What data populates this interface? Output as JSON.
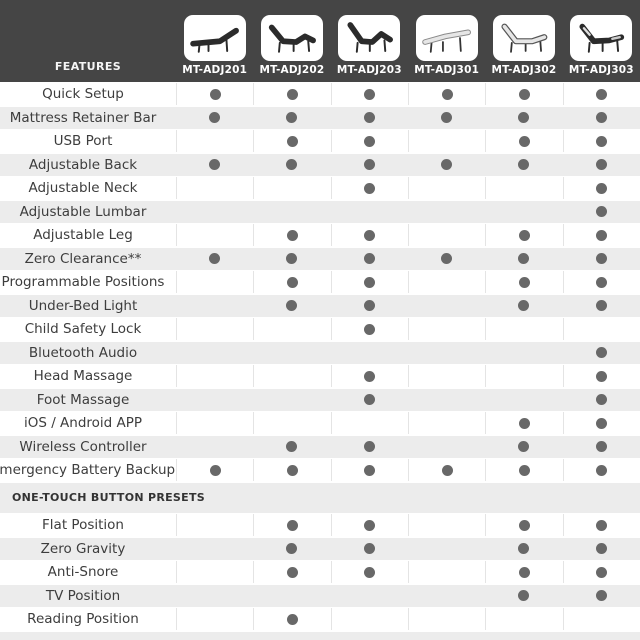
{
  "header": {
    "features_label": "FEATURES",
    "products": [
      {
        "model": "MT-ADJ201",
        "icon": "bed-flat-dark-icon"
      },
      {
        "model": "MT-ADJ202",
        "icon": "bed-adjusted-dark-icon"
      },
      {
        "model": "MT-ADJ203",
        "icon": "bed-adjusted-steep-dark-icon"
      },
      {
        "model": "MT-ADJ301",
        "icon": "bed-flat-light-frame-icon"
      },
      {
        "model": "MT-ADJ302",
        "icon": "bed-adjusted-light-icon"
      },
      {
        "model": "MT-ADJ303",
        "icon": "bed-adjusted-dark-light-icon"
      }
    ]
  },
  "chart_data": {
    "type": "table",
    "columns": [
      "FEATURES",
      "MT-ADJ201",
      "MT-ADJ202",
      "MT-ADJ203",
      "MT-ADJ301",
      "MT-ADJ302",
      "MT-ADJ303"
    ],
    "feature_rows": [
      {
        "label": "Quick Setup",
        "values": [
          true,
          true,
          true,
          true,
          true,
          true
        ]
      },
      {
        "label": "Mattress Retainer Bar",
        "values": [
          true,
          true,
          true,
          true,
          true,
          true
        ]
      },
      {
        "label": "USB Port",
        "values": [
          false,
          true,
          true,
          false,
          true,
          true
        ]
      },
      {
        "label": "Adjustable Back",
        "values": [
          true,
          true,
          true,
          true,
          true,
          true
        ]
      },
      {
        "label": "Adjustable Neck",
        "values": [
          false,
          false,
          true,
          false,
          false,
          true
        ]
      },
      {
        "label": "Adjustable Lumbar",
        "values": [
          false,
          false,
          false,
          false,
          false,
          true
        ]
      },
      {
        "label": "Adjustable Leg",
        "values": [
          false,
          true,
          true,
          false,
          true,
          true
        ]
      },
      {
        "label": "Zero Clearance**",
        "values": [
          true,
          true,
          true,
          true,
          true,
          true
        ]
      },
      {
        "label": "Programmable Positions",
        "values": [
          false,
          true,
          true,
          false,
          true,
          true
        ]
      },
      {
        "label": "Under-Bed Light",
        "values": [
          false,
          true,
          true,
          false,
          true,
          true
        ]
      },
      {
        "label": "Child Safety Lock",
        "values": [
          false,
          false,
          true,
          false,
          false,
          false
        ]
      },
      {
        "label": "Bluetooth Audio",
        "values": [
          false,
          false,
          false,
          false,
          false,
          true
        ]
      },
      {
        "label": "Head Massage",
        "values": [
          false,
          false,
          true,
          false,
          false,
          true
        ]
      },
      {
        "label": "Foot Massage",
        "values": [
          false,
          false,
          true,
          false,
          false,
          true
        ]
      },
      {
        "label": "iOS / Android APP",
        "values": [
          false,
          false,
          false,
          false,
          true,
          true
        ]
      },
      {
        "label": "Wireless Controller",
        "values": [
          false,
          true,
          true,
          false,
          true,
          true
        ]
      },
      {
        "label": "Emergency Battery Backup",
        "values": [
          true,
          true,
          true,
          true,
          true,
          true
        ]
      }
    ],
    "section_label": "ONE-TOUCH BUTTON PRESETS",
    "preset_rows": [
      {
        "label": "Flat Position",
        "values": [
          false,
          true,
          true,
          false,
          true,
          true
        ]
      },
      {
        "label": "Zero Gravity",
        "values": [
          false,
          true,
          true,
          false,
          true,
          true
        ]
      },
      {
        "label": "Anti-Snore",
        "values": [
          false,
          true,
          true,
          false,
          true,
          true
        ]
      },
      {
        "label": "TV Position",
        "values": [
          false,
          false,
          false,
          false,
          true,
          true
        ]
      },
      {
        "label": "Reading Position",
        "values": [
          false,
          true,
          false,
          false,
          false,
          false
        ]
      }
    ]
  },
  "colors": {
    "header_bg": "#454545",
    "row_alt_bg": "#ececec",
    "dot": "#686868",
    "card_bg": "#ffffff",
    "feature_text": "#3d3d3d"
  }
}
